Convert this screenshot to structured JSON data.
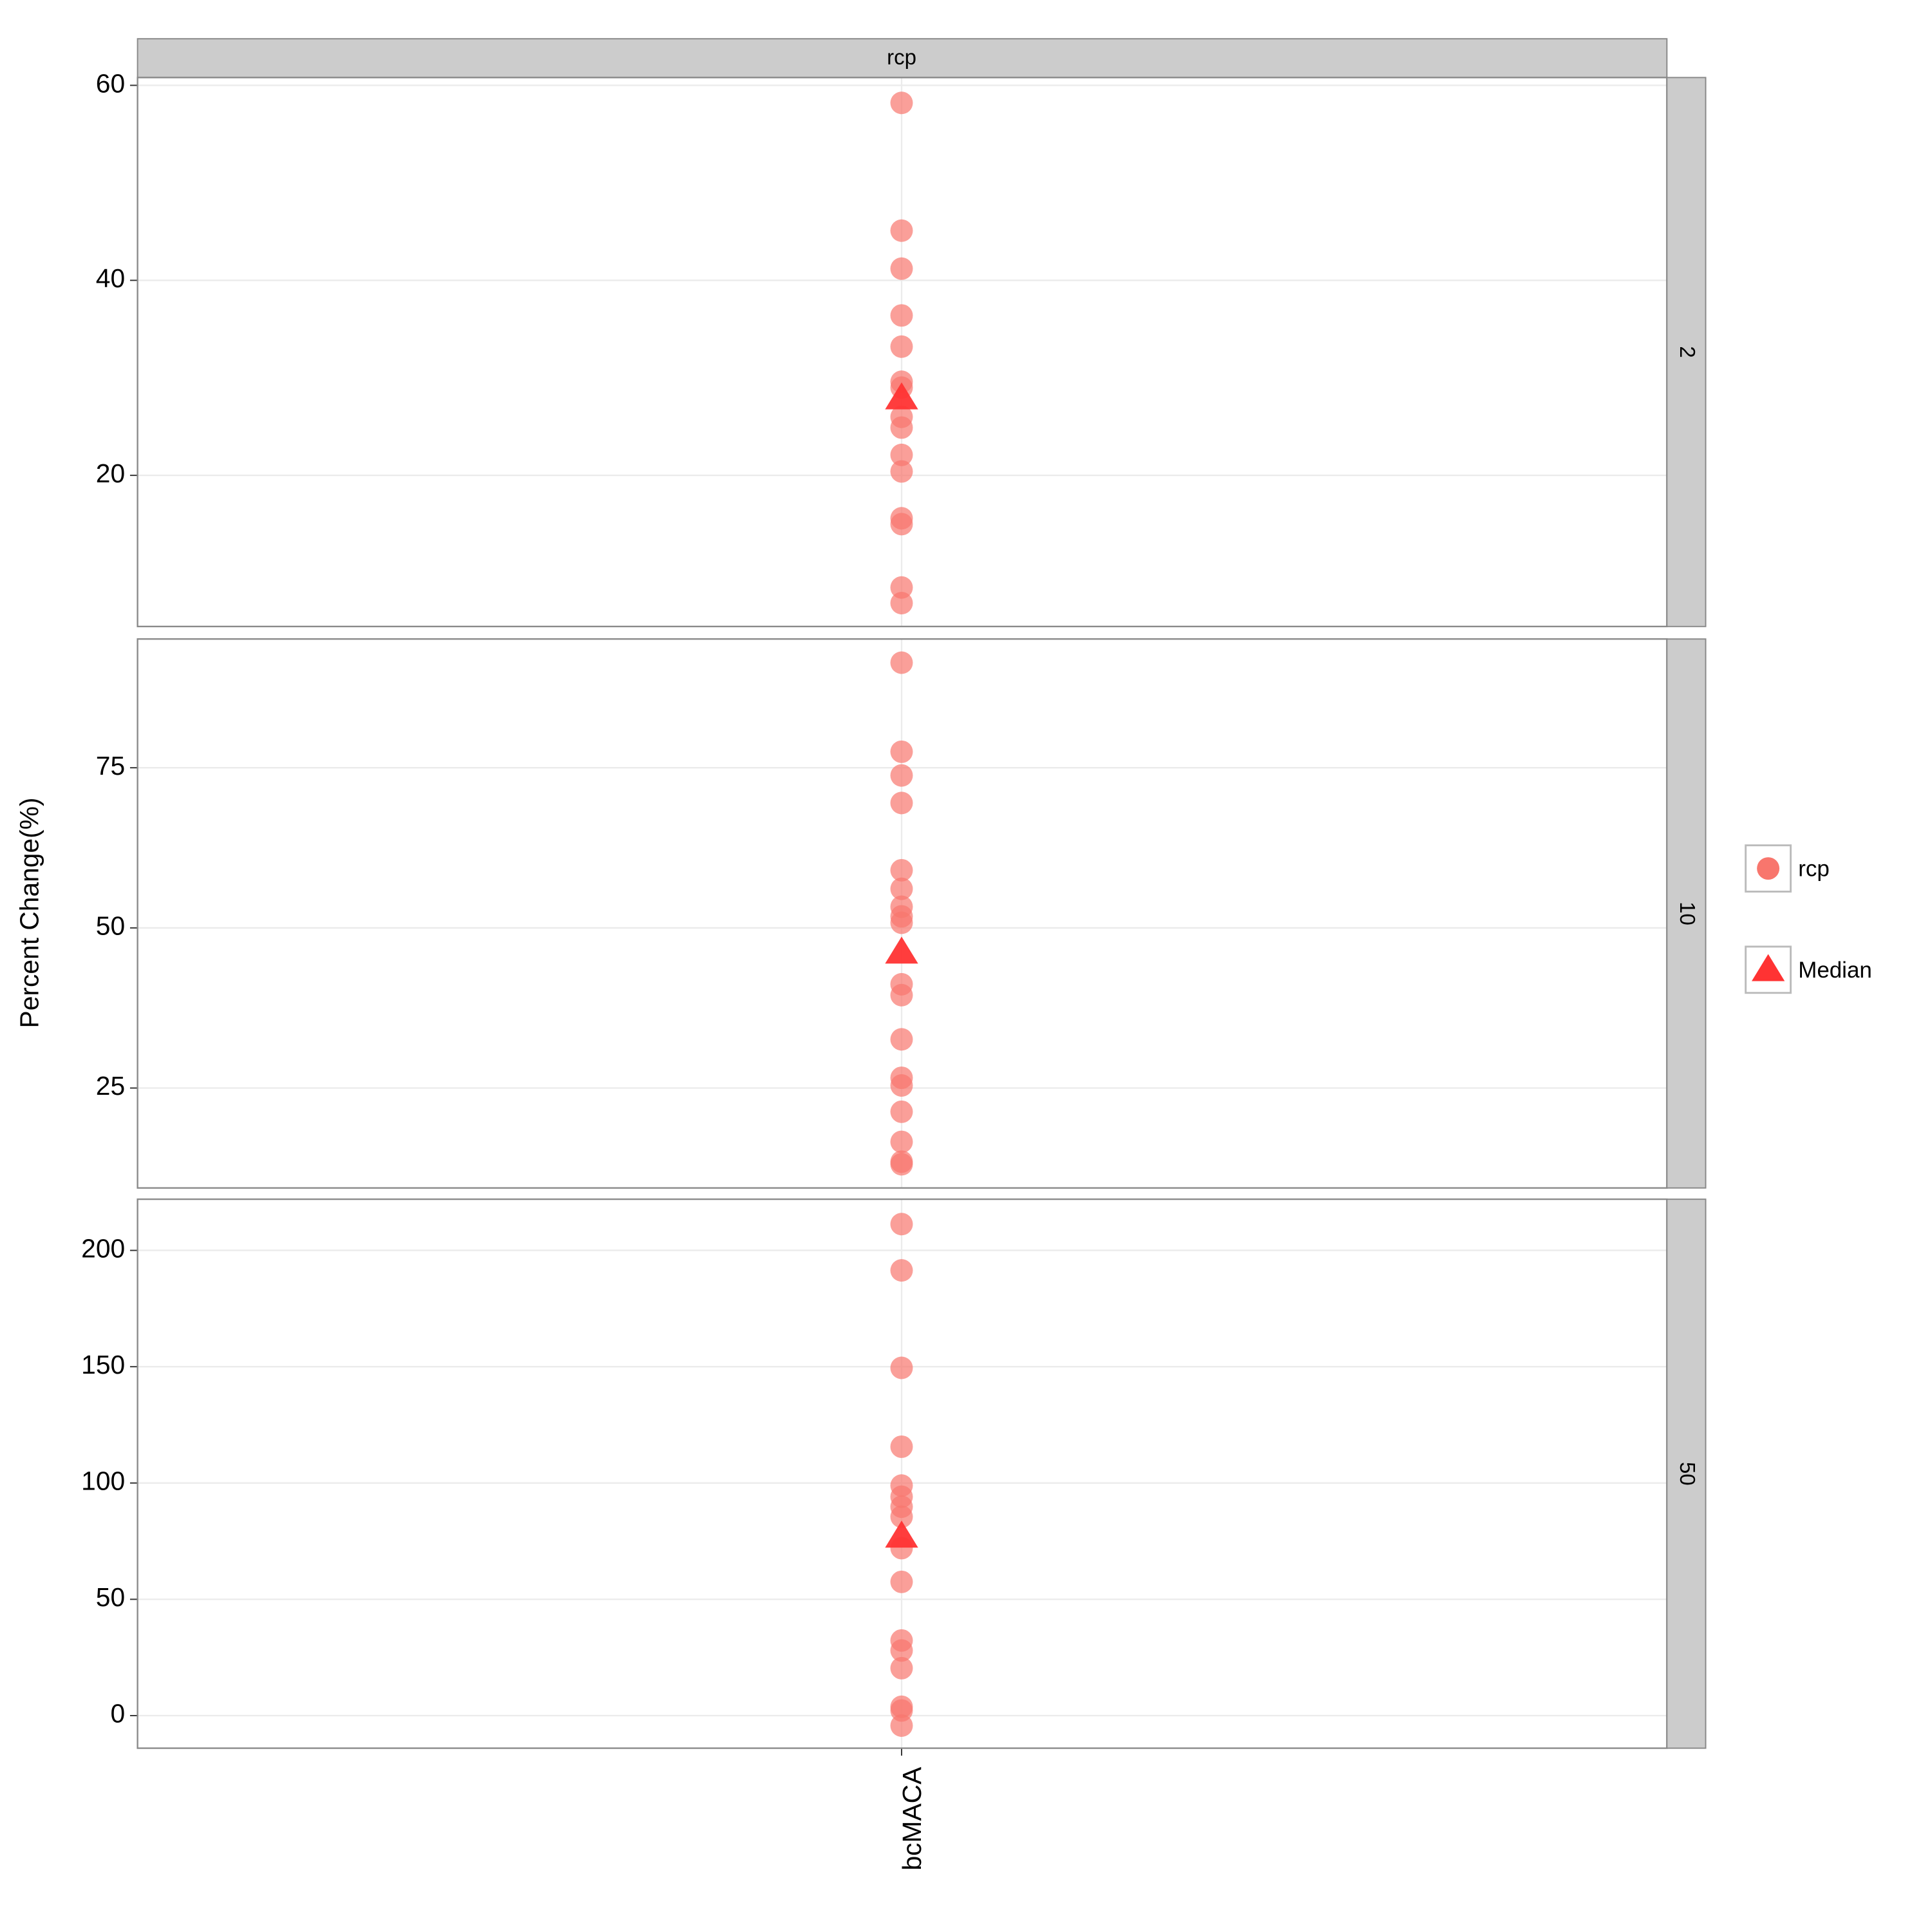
{
  "strip_title": "rcp",
  "y_label": "Percent Change(%)",
  "categories": [
    "bcMACA"
  ],
  "legend": [
    {
      "name": "rcp",
      "color": "#f8766d",
      "shape": "circle"
    },
    {
      "name": "Median",
      "color": "#ff3333",
      "shape": "triangle"
    }
  ],
  "chart_data": [
    {
      "type": "scatter",
      "facet": "2",
      "ylim": [
        4.5,
        60.8
      ],
      "yticks": [
        20,
        40,
        60
      ],
      "series": [
        {
          "values": [
            58.2,
            45.1,
            41.2,
            36.4,
            33.2,
            29.6,
            29.0,
            26.0,
            24.9,
            22.1,
            20.4,
            15.6,
            15.0,
            8.5,
            6.9
          ]
        },
        {
          "values": [
            28.0
          ]
        }
      ]
    },
    {
      "type": "scatter",
      "facet": "10",
      "ylim": [
        9.4,
        95.1
      ],
      "yticks": [
        25,
        50,
        75
      ],
      "series": [
        {
          "values": [
            91.4,
            77.5,
            73.8,
            69.5,
            59.0,
            56.1,
            53.3,
            51.8,
            50.8,
            41.2,
            39.5,
            32.6,
            26.6,
            25.4,
            21.3,
            16.6,
            13.5,
            13.1
          ]
        },
        {
          "values": [
            46.3
          ]
        }
      ]
    },
    {
      "type": "scatter",
      "facet": "50",
      "ylim": [
        -14.0,
        222.0
      ],
      "yticks": [
        0,
        50,
        100,
        150,
        200
      ],
      "series": [
        {
          "values": [
            211.3,
            191.4,
            149.5,
            115.6,
            98.9,
            94.1,
            89.8,
            85.5,
            72.0,
            57.5,
            32.3,
            28.0,
            20.4,
            3.8,
            2.2,
            -4.3
          ]
        },
        {
          "values": [
            77.4
          ]
        }
      ]
    }
  ]
}
